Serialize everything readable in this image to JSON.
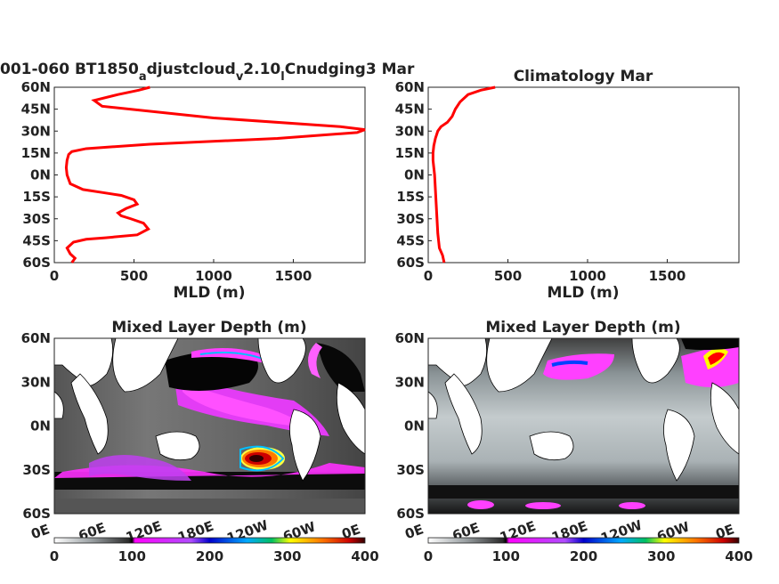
{
  "chart_data": [
    {
      "type": "line",
      "title_parts": [
        "001-060 BT1850",
        "a",
        "djustcloud",
        "v",
        "2.10",
        "l",
        "Cnudging3 Mar"
      ],
      "xlabel": "MLD (m)",
      "xlim": [
        0,
        1950
      ],
      "xticks": [
        "0",
        "500",
        "1000",
        "1500"
      ],
      "xtick_values": [
        0,
        500,
        1000,
        1500
      ],
      "ylim": [
        -60,
        60
      ],
      "yticks": [
        "60N",
        "45N",
        "30N",
        "15N",
        "0N",
        "15S",
        "30S",
        "45S",
        "60S"
      ],
      "ytick_values": [
        60,
        45,
        30,
        15,
        0,
        -15,
        -30,
        -45,
        -60
      ],
      "series": [
        {
          "color": "#ff0000",
          "x": [
            110,
            130,
            100,
            80,
            120,
            200,
            320,
            520,
            590,
            560,
            480,
            420,
            400,
            450,
            520,
            500,
            420,
            300,
            180,
            100,
            80,
            75,
            80,
            90,
            110,
            200,
            600,
            1400,
            1900,
            1950,
            1800,
            1000,
            300,
            250,
            400,
            530,
            600
          ],
          "y": [
            -60,
            -57,
            -54,
            -50,
            -46,
            -44,
            -43,
            -41,
            -37,
            -33,
            -30,
            -28,
            -26,
            -23,
            -20,
            -17,
            -14,
            -12,
            -10,
            -6,
            0,
            5,
            10,
            14,
            16,
            18,
            21,
            25,
            29,
            31,
            33,
            39,
            47,
            51,
            55,
            58,
            60
          ]
        }
      ]
    },
    {
      "type": "line",
      "title": "Climatology Mar",
      "xlabel": "MLD (m)",
      "xlim": [
        0,
        1950
      ],
      "xticks": [
        "0",
        "500",
        "1000",
        "1500"
      ],
      "xtick_values": [
        0,
        500,
        1000,
        1500
      ],
      "ylim": [
        -60,
        60
      ],
      "yticks": [
        "60N",
        "45N",
        "30N",
        "15N",
        "0N",
        "15S",
        "30S",
        "45S",
        "60S"
      ],
      "ytick_values": [
        60,
        45,
        30,
        15,
        0,
        -15,
        -30,
        -45,
        -60
      ],
      "series": [
        {
          "color": "#ff0000",
          "x": [
            100,
            90,
            70,
            60,
            55,
            50,
            45,
            40,
            35,
            30,
            30,
            35,
            45,
            60,
            80,
            120,
            150,
            170,
            200,
            250,
            330,
            420
          ],
          "y": [
            -60,
            -55,
            -50,
            -40,
            -30,
            -20,
            -10,
            0,
            5,
            10,
            15,
            20,
            25,
            30,
            33,
            36,
            40,
            45,
            50,
            55,
            58,
            60
          ]
        }
      ]
    },
    {
      "type": "heatmap",
      "title": "Mixed Layer Depth (m)",
      "yticks": [
        "60N",
        "30N",
        "0N",
        "30S",
        "60S"
      ],
      "xticks": [
        "0E",
        "60E",
        "120E",
        "180E",
        "120W",
        "60W",
        "0E"
      ],
      "colorbar_ticks": [
        "0",
        "100",
        "200",
        "300",
        "400"
      ],
      "colorbar_range": [
        0,
        400
      ]
    },
    {
      "type": "heatmap",
      "title": "Mixed Layer Depth (m)",
      "yticks": [
        "60N",
        "30N",
        "0N",
        "30S",
        "60S"
      ],
      "xticks": [
        "0E",
        "60E",
        "120E",
        "180E",
        "120W",
        "60W",
        "0E"
      ],
      "colorbar_ticks": [
        "0",
        "100",
        "200",
        "300",
        "400"
      ],
      "colorbar_range": [
        0,
        400
      ]
    }
  ]
}
